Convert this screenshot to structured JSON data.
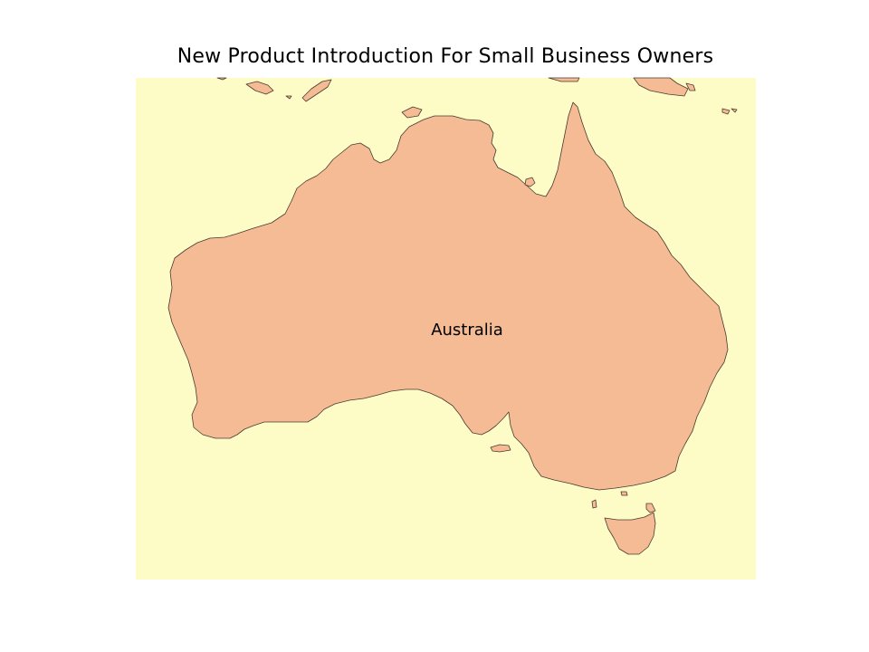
{
  "map": {
    "title": "New Product Introduction For Small Business Owners",
    "region_label": "Australia",
    "colors": {
      "ocean": "#FEFCC6",
      "land": "#F5BB94",
      "coastline": "#4A3A30",
      "page_background": "#FFFFFF"
    }
  }
}
